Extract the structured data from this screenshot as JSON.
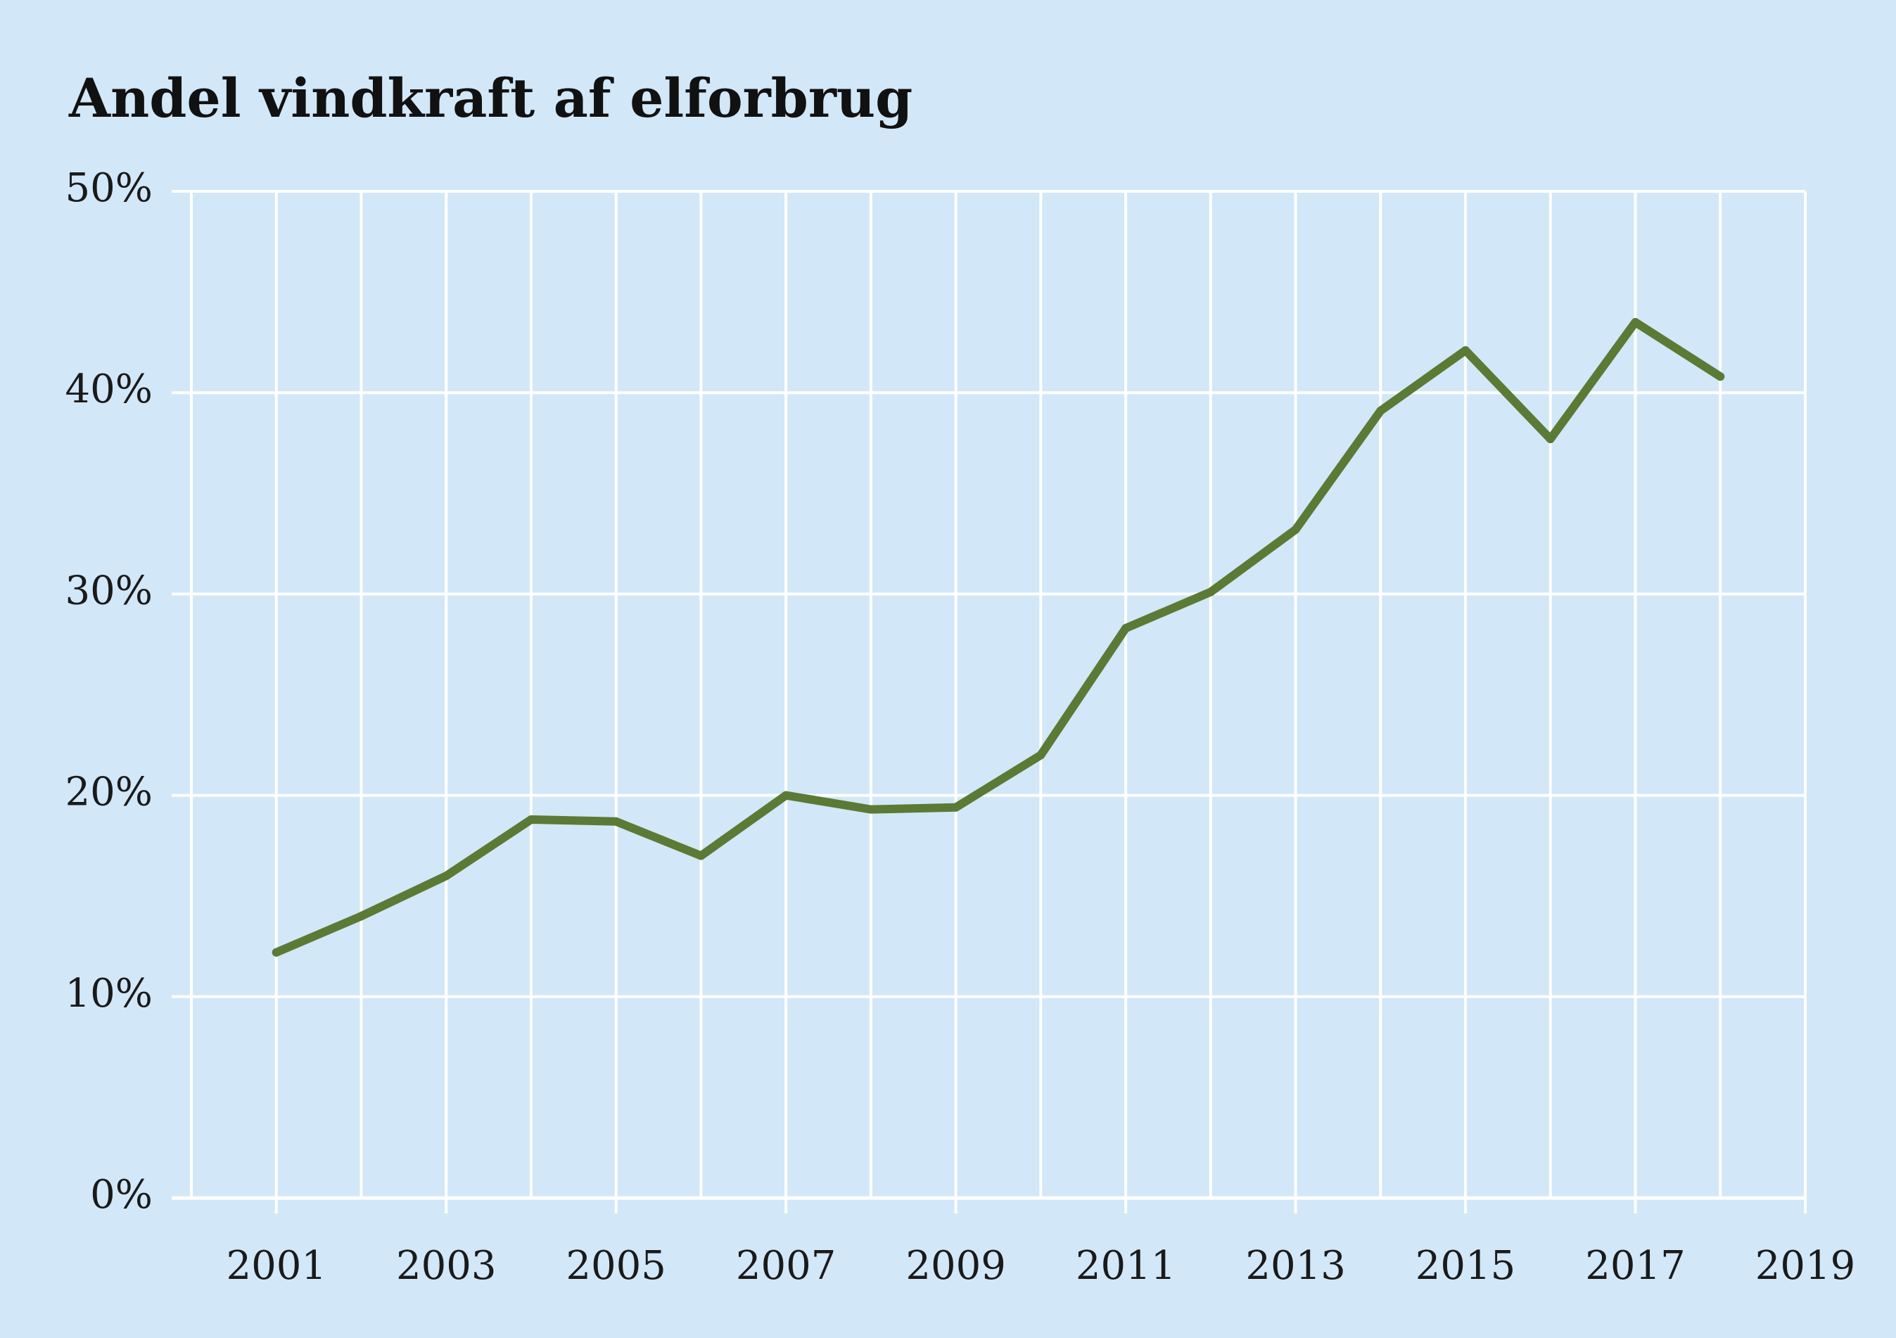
{
  "chart_data": {
    "type": "line",
    "title": "Andel vindkraft af elforbrug",
    "xlabel": "",
    "ylabel": "",
    "x": [
      2001,
      2002,
      2003,
      2004,
      2005,
      2006,
      2007,
      2008,
      2009,
      2010,
      2011,
      2012,
      2013,
      2014,
      2015,
      2016,
      2017,
      2018
    ],
    "series": [
      {
        "name": "Andel vindkraft",
        "color": "#5b7a35",
        "values": [
          12.2,
          14.0,
          16.0,
          18.8,
          18.7,
          17.0,
          20.0,
          19.3,
          19.4,
          22.0,
          28.3,
          30.1,
          33.2,
          39.1,
          42.1,
          37.7,
          43.5,
          40.8
        ]
      }
    ],
    "ylim": [
      0,
      50
    ],
    "xlim": [
      2000,
      2019
    ],
    "yticks": [
      0,
      10,
      20,
      30,
      40,
      50
    ],
    "ytick_labels": [
      "0%",
      "10%",
      "20%",
      "30%",
      "40%",
      "50%"
    ],
    "xticks": [
      2001,
      2003,
      2005,
      2007,
      2009,
      2011,
      2013,
      2015,
      2017,
      2019
    ],
    "xtick_labels": [
      "2001",
      "2003",
      "2005",
      "2007",
      "2009",
      "2011",
      "2013",
      "2015",
      "2017",
      "2019"
    ],
    "grid": true,
    "background_color": "#d2e7f8",
    "grid_color": "#ffffff"
  }
}
